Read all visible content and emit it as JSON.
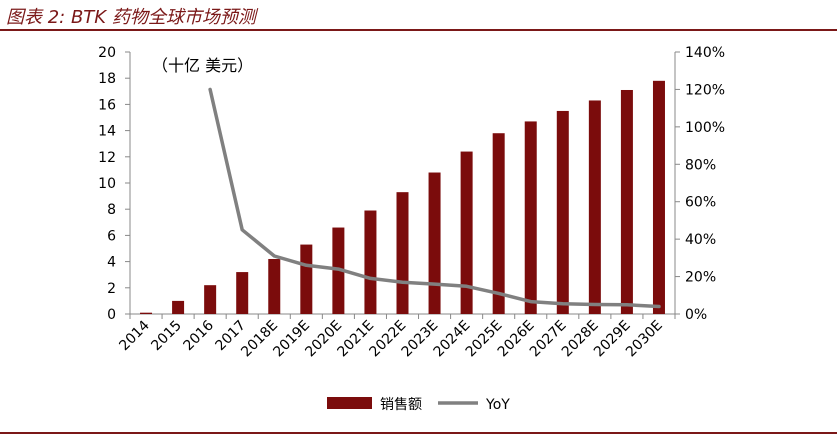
{
  "header": {
    "title": "图表 2: BTK 药物全球市场预测"
  },
  "chart_data": {
    "type": "bar+line",
    "unit_label": "（十亿 美元）",
    "categories": [
      "2014",
      "2015",
      "2016",
      "2017",
      "2018E",
      "2019E",
      "2020E",
      "2021E",
      "2022E",
      "2023E",
      "2024E",
      "2025E",
      "2026E",
      "2027E",
      "2028E",
      "2029E",
      "2030E"
    ],
    "series": [
      {
        "name": "销售额",
        "type": "bar",
        "axis": "left",
        "values": [
          0.1,
          1.0,
          2.2,
          3.2,
          4.2,
          5.3,
          6.6,
          7.9,
          9.3,
          10.8,
          12.4,
          13.8,
          14.7,
          15.5,
          16.3,
          17.1,
          17.8
        ]
      },
      {
        "name": "YoY",
        "type": "line",
        "axis": "right",
        "values": [
          null,
          null,
          120,
          45,
          31,
          26,
          24,
          19,
          17,
          16,
          14.8,
          11,
          6.6,
          5.5,
          5.1,
          4.9,
          4
        ]
      }
    ],
    "yleft": {
      "min": 0,
      "max": 20,
      "step": 2
    },
    "yright": {
      "min": 0,
      "max": 140,
      "step": 20,
      "suffix": "%"
    },
    "colors": {
      "bar": "#7B0C0C",
      "line": "#808080",
      "accent": "#7B1818"
    },
    "legend_position": "bottom"
  }
}
